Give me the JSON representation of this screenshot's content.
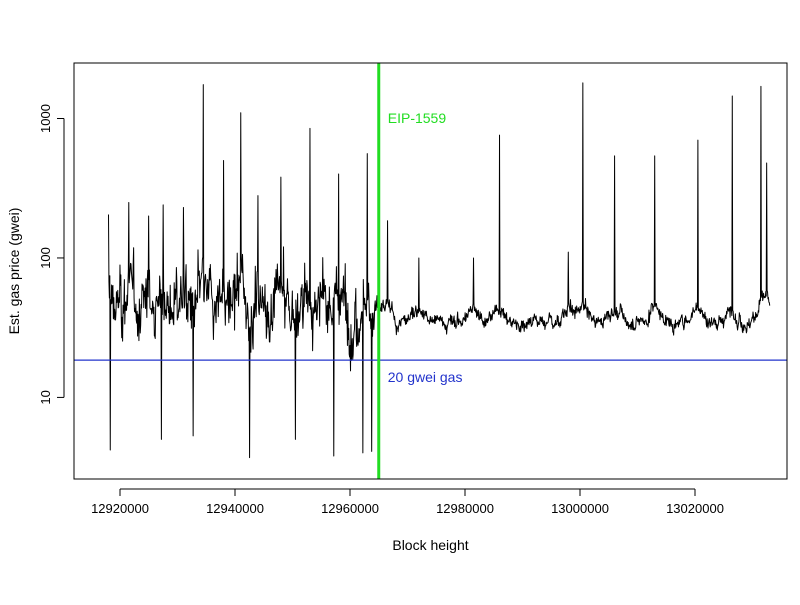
{
  "chart_data": {
    "type": "line",
    "title": "",
    "xlabel": "Block height",
    "ylabel": "Est. gas price (gwei)",
    "y_scale": "log",
    "xlim": [
      12912000,
      13036000
    ],
    "ylim": [
      2.6,
      2500
    ],
    "x_ticks": [
      12920000,
      12940000,
      12960000,
      12980000,
      13000000,
      13020000
    ],
    "x_tick_labels": [
      "12920000",
      "12940000",
      "12960000",
      "12980000",
      "13000000",
      "13020000"
    ],
    "y_ticks": [
      10,
      100,
      1000
    ],
    "y_tick_labels": [
      "10",
      "100",
      "1000"
    ],
    "grid": false,
    "legend": "none",
    "series": [
      {
        "color": "#000000",
        "x_range": [
          12918000,
          13033000
        ],
        "regimes": [
          {
            "x_start": 12918000,
            "x_end": 12965000,
            "baseline_gwei": 42,
            "typical_low_gwei": 15,
            "typical_high_gwei": 120
          },
          {
            "x_start": 12965000,
            "x_end": 13033000,
            "baseline_gwei": 35,
            "typical_low_gwei": 24,
            "typical_high_gwei": 60
          }
        ],
        "peaks": [
          {
            "x": 12918000,
            "y": 205
          },
          {
            "x": 12921500,
            "y": 250
          },
          {
            "x": 12925000,
            "y": 200
          },
          {
            "x": 12927500,
            "y": 240
          },
          {
            "x": 12931000,
            "y": 230
          },
          {
            "x": 12934500,
            "y": 1750
          },
          {
            "x": 12938000,
            "y": 500
          },
          {
            "x": 12941000,
            "y": 1100
          },
          {
            "x": 12944000,
            "y": 280
          },
          {
            "x": 12948000,
            "y": 380
          },
          {
            "x": 12953000,
            "y": 850
          },
          {
            "x": 12958000,
            "y": 400
          },
          {
            "x": 12963000,
            "y": 560
          },
          {
            "x": 12966500,
            "y": 185
          },
          {
            "x": 12972000,
            "y": 100
          },
          {
            "x": 12981500,
            "y": 100
          },
          {
            "x": 12986000,
            "y": 760
          },
          {
            "x": 12998000,
            "y": 110
          },
          {
            "x": 13000500,
            "y": 1800
          },
          {
            "x": 13006000,
            "y": 540
          },
          {
            "x": 13013000,
            "y": 540
          },
          {
            "x": 13020500,
            "y": 700
          },
          {
            "x": 13026500,
            "y": 1450
          },
          {
            "x": 13031500,
            "y": 1700
          },
          {
            "x": 13032500,
            "y": 480
          }
        ],
        "troughs": [
          {
            "x": 12918300,
            "y": 4.2
          },
          {
            "x": 12927200,
            "y": 5
          },
          {
            "x": 12932700,
            "y": 5.3
          },
          {
            "x": 12942500,
            "y": 3.7
          },
          {
            "x": 12950500,
            "y": 5
          },
          {
            "x": 12957200,
            "y": 3.8
          },
          {
            "x": 12962200,
            "y": 4
          },
          {
            "x": 12963800,
            "y": 4.1
          }
        ]
      }
    ],
    "annotations": [
      {
        "kind": "vline",
        "x": 12965000,
        "color": "#22dd22",
        "label": "EIP-1559"
      },
      {
        "kind": "hline",
        "y": 18.5,
        "color": "#2233cc",
        "label": "20 gwei gas"
      }
    ]
  }
}
